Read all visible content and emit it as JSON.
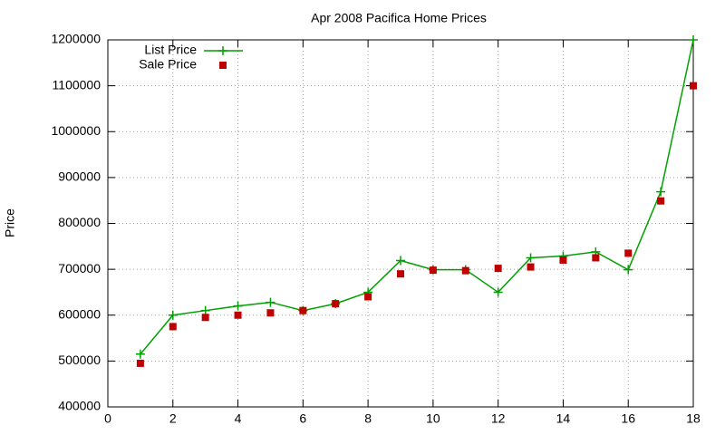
{
  "chart_data": {
    "type": "line",
    "title": "Apr 2008 Pacifica Home Prices",
    "y_label": "Price",
    "x": [
      1,
      2,
      3,
      4,
      5,
      6,
      7,
      8,
      9,
      10,
      11,
      12,
      13,
      14,
      15,
      16,
      17,
      18
    ],
    "series": [
      {
        "name": "List Price",
        "color": "#00a000",
        "style": "linespoints",
        "values": [
          515000,
          600000,
          610000,
          620000,
          628000,
          610000,
          625000,
          650000,
          719000,
          699000,
          699000,
          650000,
          725000,
          729000,
          738000,
          699000,
          869000,
          1200000
        ]
      },
      {
        "name": "Sale Price",
        "color": "#c00000",
        "style": "points",
        "values": [
          495000,
          575000,
          595000,
          600000,
          605000,
          610000,
          625000,
          640000,
          690000,
          698000,
          697000,
          702000,
          705000,
          720000,
          725000,
          735000,
          849000,
          1100000
        ]
      }
    ],
    "xlim": [
      0,
      18
    ],
    "xticks": [
      0,
      2,
      4,
      6,
      8,
      10,
      12,
      14,
      16,
      18
    ],
    "ylim": [
      400000,
      1200000
    ],
    "yticks": [
      400000,
      500000,
      600000,
      700000,
      800000,
      900000,
      1000000,
      1100000,
      1200000
    ],
    "grid": true,
    "legend": "top-left"
  }
}
